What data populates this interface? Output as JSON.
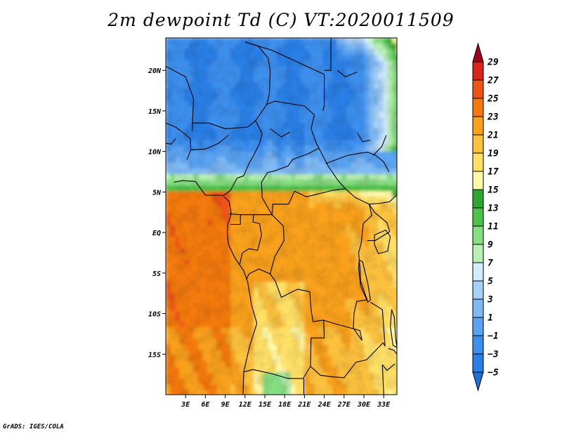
{
  "title": "2m dewpoint Td (C) VT:2020011509",
  "footer": "GrADS: IGES/COLA",
  "chart_data": {
    "type": "heatmap",
    "variable": "2m dewpoint Td (C)",
    "valid_time": "2020011509",
    "lon_range": [
      0,
      35
    ],
    "lat_range": [
      -20,
      24
    ],
    "x_ticks": [
      "3E",
      "6E",
      "9E",
      "12E",
      "15E",
      "18E",
      "21E",
      "24E",
      "27E",
      "30E",
      "33E"
    ],
    "x_tick_values": [
      3,
      6,
      9,
      12,
      15,
      18,
      21,
      24,
      27,
      30,
      33
    ],
    "y_ticks": [
      "20N",
      "15N",
      "10N",
      "5N",
      "EQ",
      "5S",
      "10S",
      "15S"
    ],
    "y_tick_values": [
      20,
      15,
      10,
      5,
      0,
      -5,
      -10,
      -15
    ],
    "colorbar": {
      "labels": [
        "29",
        "27",
        "25",
        "23",
        "21",
        "19",
        "17",
        "15",
        "13",
        "11",
        "9",
        "7",
        "5",
        "3",
        "1",
        "−1",
        "−3",
        "−5"
      ],
      "levels": [
        -5,
        -3,
        -1,
        1,
        3,
        5,
        7,
        9,
        11,
        13,
        15,
        17,
        19,
        21,
        23,
        25,
        27,
        29
      ],
      "colors": [
        "#1e6fd9",
        "#2a7fe6",
        "#3d8fee",
        "#5aa3f2",
        "#7fbaf5",
        "#a7d0f8",
        "#d2ecfb",
        "#b8f0b4",
        "#86de82",
        "#4cc24a",
        "#2fa62f",
        "#fffaaa",
        "#ffe066",
        "#fcc13d",
        "#f9a11a",
        "#f47a10",
        "#ee5514",
        "#d8261a",
        "#a0001a"
      ]
    },
    "legend_placement": "right"
  }
}
